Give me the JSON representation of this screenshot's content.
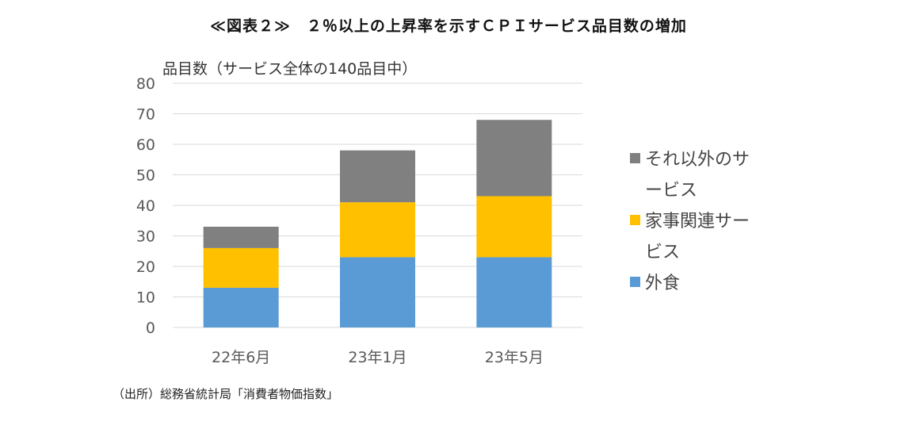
{
  "title": "≪図表２≫　２％以上の上昇率を示すＣＰＩサービス品目数の増加",
  "source": "（出所）総務省統計局「消費者物価指数」",
  "colors": {
    "gaishoku": "#5B9BD5",
    "kaji": "#FFC000",
    "other": "#808080",
    "grid": "#D9D9D9",
    "axis_text": "#595959"
  },
  "chart_data": {
    "type": "bar",
    "stacked": true,
    "ylabel": "品目数（サービス全体の140品目中）",
    "xlabel": "",
    "categories": [
      "22年6月",
      "23年1月",
      "23年5月"
    ],
    "ylim": [
      0,
      80
    ],
    "yticks": [
      0,
      10,
      20,
      30,
      40,
      50,
      60,
      70,
      80
    ],
    "grid": true,
    "legend_position": "right",
    "series": [
      {
        "name": "外食",
        "values": [
          13,
          23,
          23
        ],
        "color": "#5B9BD5"
      },
      {
        "name": "家事関連サービス",
        "values": [
          13,
          18,
          20
        ],
        "color": "#FFC000"
      },
      {
        "name": "それ以外のサービス",
        "values": [
          7,
          17,
          25
        ],
        "color": "#808080"
      }
    ],
    "legend": [
      {
        "label": "それ以外のサービス",
        "color": "#808080"
      },
      {
        "label": "家事関連サービス",
        "color": "#FFC000"
      },
      {
        "label": "外食",
        "color": "#5B9BD5"
      }
    ]
  }
}
